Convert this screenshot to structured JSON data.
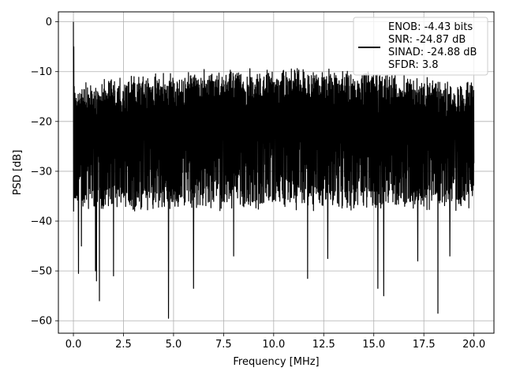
{
  "chart_data": {
    "type": "line",
    "title": "",
    "xlabel": "Frequency [MHz]",
    "ylabel": "PSD [dB]",
    "xlim": [
      -0.75,
      21.0
    ],
    "ylim": [
      -62.5,
      2.0
    ],
    "grid": true,
    "x_ticks": [
      0.0,
      2.5,
      5.0,
      7.5,
      10.0,
      12.5,
      15.0,
      17.5,
      20.0
    ],
    "x_tick_labels": [
      "0.0",
      "2.5",
      "5.0",
      "7.5",
      "10.0",
      "12.5",
      "15.0",
      "17.5",
      "20.0"
    ],
    "y_ticks": [
      0,
      -10,
      -20,
      -30,
      -40,
      -50,
      -60
    ],
    "y_tick_labels": [
      "0",
      "−10",
      "−20",
      "−30",
      "−40",
      "−50",
      "−60"
    ],
    "legend": {
      "placement": "upper right",
      "entries": [
        "ENOB: -4.43 bits",
        "SNR: -24.87 dB",
        "SINAD: -24.88 dB",
        "SFDR: 3.8"
      ]
    },
    "series": [
      {
        "color": "#000000",
        "x_range": [
          0.0,
          20.0
        ],
        "points": 2048,
        "peak": {
          "x": 0.0,
          "y": 0.0
        },
        "upper_envelope_db": [
          -12,
          -9
        ],
        "typical_floor_db": [
          -38,
          -34
        ],
        "deep_nulls": [
          {
            "x": 0.25,
            "y": -50.5
          },
          {
            "x": 0.4,
            "y": -45
          },
          {
            "x": 1.1,
            "y": -50
          },
          {
            "x": 1.15,
            "y": -52
          },
          {
            "x": 1.3,
            "y": -56
          },
          {
            "x": 2.0,
            "y": -51
          },
          {
            "x": 4.75,
            "y": -59.5
          },
          {
            "x": 6.0,
            "y": -53.5
          },
          {
            "x": 8.0,
            "y": -47
          },
          {
            "x": 11.7,
            "y": -51.5
          },
          {
            "x": 12.7,
            "y": -47.5
          },
          {
            "x": 15.2,
            "y": -53.5
          },
          {
            "x": 15.5,
            "y": -55
          },
          {
            "x": 17.2,
            "y": -48
          },
          {
            "x": 18.2,
            "y": -58.5
          },
          {
            "x": 18.8,
            "y": -47
          }
        ]
      }
    ]
  }
}
